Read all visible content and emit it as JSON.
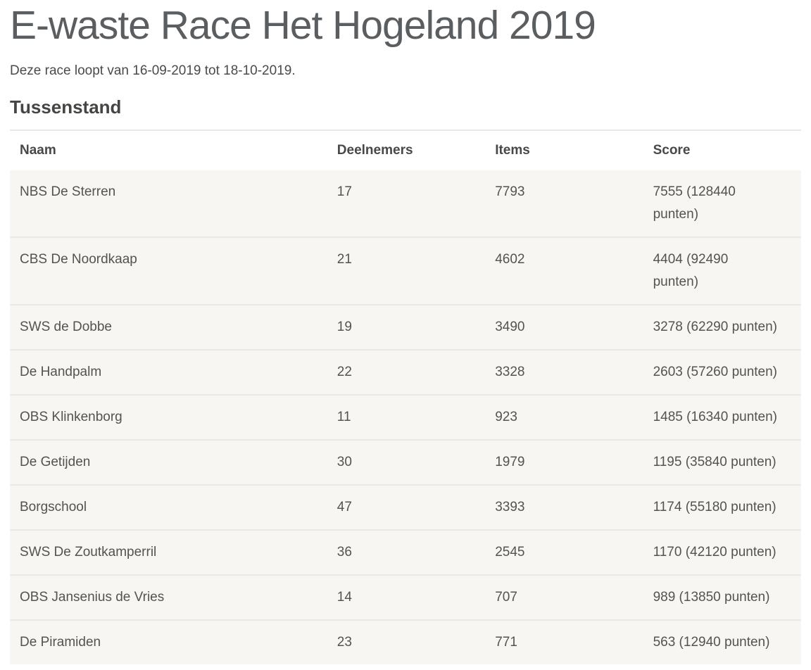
{
  "page": {
    "title": "E-waste Race Het Hogeland 2019",
    "subtitle": "Deze race loopt van 16-09-2019 tot 18-10-2019.",
    "section_heading": "Tussenstand"
  },
  "table": {
    "columns": {
      "naam": "Naam",
      "deelnemers": "Deelnemers",
      "items": "Items",
      "score": "Score"
    },
    "rows": [
      {
        "naam": "NBS De Sterren",
        "deelnemers": "17",
        "items": "7793",
        "score": "7555 (128440 punten)"
      },
      {
        "naam": "CBS De Noordkaap",
        "deelnemers": "21",
        "items": "4602",
        "score": "4404 (92490 punten)"
      },
      {
        "naam": "SWS de Dobbe",
        "deelnemers": "19",
        "items": "3490",
        "score": "3278 (62290 punten)"
      },
      {
        "naam": "De Handpalm",
        "deelnemers": "22",
        "items": "3328",
        "score": "2603 (57260 punten)"
      },
      {
        "naam": "OBS Klinkenborg",
        "deelnemers": "11",
        "items": "923",
        "score": "1485 (16340 punten)"
      },
      {
        "naam": "De Getijden",
        "deelnemers": "30",
        "items": "1979",
        "score": "1195 (35840 punten)"
      },
      {
        "naam": "Borgschool",
        "deelnemers": "47",
        "items": "3393",
        "score": "1174 (55180 punten)"
      },
      {
        "naam": "SWS De Zoutkamperril",
        "deelnemers": "36",
        "items": "2545",
        "score": "1170 (42120 punten)"
      },
      {
        "naam": "OBS Jansenius de Vries",
        "deelnemers": "14",
        "items": "707",
        "score": "989 (13850 punten)"
      },
      {
        "naam": "De Piramiden",
        "deelnemers": "23",
        "items": "771",
        "score": "563 (12940 punten)"
      }
    ]
  },
  "colors": {
    "title_text": "#5b5e61",
    "body_text": "#55534e",
    "heading_text": "#454543",
    "header_text": "#484846",
    "row_background": "#f7f6f2",
    "row_separator": "#ebe9e4",
    "table_top_border": "#e9e7e2",
    "page_background": "#ffffff"
  }
}
